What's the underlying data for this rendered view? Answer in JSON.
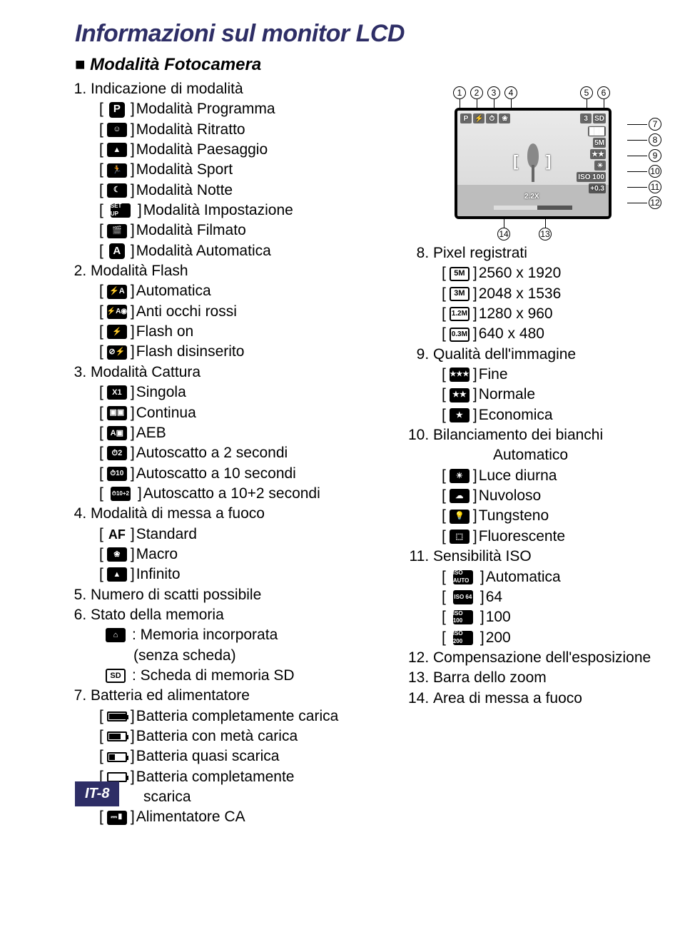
{
  "title": "Informazioni sul monitor LCD",
  "subheading": "Modalità Fotocamera",
  "footer": "IT-8",
  "colors": {
    "accent": "#2e2e66"
  },
  "diagram": {
    "callouts_top": [
      "1",
      "2",
      "3",
      "4",
      "5",
      "6"
    ],
    "callouts_right": [
      "7",
      "8",
      "9",
      "10",
      "11",
      "12"
    ],
    "callouts_bottom": [
      "14",
      "13"
    ],
    "overlay": {
      "p": "P",
      "shots": "3",
      "sd": "SD",
      "size": "5M",
      "iso": "ISO 100",
      "zoom": "2.2X",
      "exp": "+0.3"
    }
  },
  "left": [
    {
      "n": "1",
      "label": "Indicazione di modalità",
      "items": [
        {
          "icon": "P",
          "style": "lg",
          "text": "Modalità Programma"
        },
        {
          "icon": "☺",
          "text": "Modalità Ritratto"
        },
        {
          "icon": "▲",
          "text": "Modalità Paesaggio"
        },
        {
          "icon": "🏃",
          "text": "Modalità Sport"
        },
        {
          "icon": "☾",
          "text": "Modalità Notte"
        },
        {
          "icon": "SET UP",
          "text": "Modalità Impostazione"
        },
        {
          "icon": "🎬",
          "text": "Modalità Filmato"
        },
        {
          "icon": "A",
          "style": "lg",
          "text": "Modalità Automatica"
        }
      ]
    },
    {
      "n": "2",
      "label": "Modalità Flash",
      "items": [
        {
          "icon": "⚡A",
          "text": "Automatica"
        },
        {
          "icon": "⚡A◉",
          "text": "Anti occhi rossi"
        },
        {
          "icon": "⚡",
          "text": "Flash on"
        },
        {
          "icon": "⊘⚡",
          "text": "Flash disinserito"
        }
      ]
    },
    {
      "n": "3",
      "label": "Modalità Cattura",
      "items": [
        {
          "icon": "X1",
          "text": "Singola"
        },
        {
          "icon": "▣▣",
          "text": "Continua"
        },
        {
          "icon": "A▣",
          "text": "AEB"
        },
        {
          "icon": "⏱2",
          "text": "Autoscatto a 2 secondi"
        },
        {
          "icon": "⏱10",
          "text": "Autoscatto a 10 secondi"
        },
        {
          "icon": "⏱10+2",
          "text": "Autoscatto a 10+2 secondi"
        }
      ]
    },
    {
      "n": "4",
      "label": "Modalità di messa a fuoco",
      "items": [
        {
          "icon": "AF",
          "style": "af",
          "text": "Standard"
        },
        {
          "icon": "❀",
          "text": "Macro"
        },
        {
          "icon": "▲",
          "text": "Infinito"
        }
      ]
    },
    {
      "n": "5",
      "label": "Numero di scatti possibile"
    },
    {
      "n": "6",
      "label": "Stato della memoria",
      "mem": [
        {
          "icon": "⌂",
          "text": ": Memoria incorporata",
          "sub": "(senza scheda)"
        },
        {
          "icon": "SD",
          "style": "inv",
          "text": ": Scheda di memoria SD"
        }
      ]
    },
    {
      "n": "7",
      "label": "Batteria ed alimentatore",
      "items": [
        {
          "icon": "███",
          "style": "batt",
          "text": "Batteria completamente carica"
        },
        {
          "icon": "██░",
          "style": "batt",
          "text": "Batteria con metà carica"
        },
        {
          "icon": "█░░",
          "style": "batt",
          "text": "Batteria quasi scarica"
        },
        {
          "icon": "░░░",
          "style": "batt",
          "text": "Batteria completamente",
          "sub2": "scarica"
        },
        {
          "icon": "⎓▮",
          "text": "Alimentatore CA"
        }
      ]
    }
  ],
  "right": [
    {
      "n": "8",
      "label": "Pixel registrati",
      "items": [
        {
          "icon": "5M",
          "style": "inv",
          "text": "2560 x 1920"
        },
        {
          "icon": "3M",
          "style": "inv",
          "text": "2048 x 1536"
        },
        {
          "icon": "1.2M",
          "style": "inv",
          "text": "1280 x 960"
        },
        {
          "icon": "0.3M",
          "style": "inv",
          "text": "640 x 480"
        }
      ]
    },
    {
      "n": "9",
      "label": "Qualità dell'immagine",
      "items": [
        {
          "icon": "★★★",
          "text": "Fine"
        },
        {
          "icon": "★★",
          "text": "Normale"
        },
        {
          "icon": "★",
          "text": "Economica"
        }
      ]
    },
    {
      "n": "10",
      "label": "Bilanciamento dei bianchi",
      "autoline": "Automatico",
      "items": [
        {
          "icon": "☀",
          "text": "Luce diurna"
        },
        {
          "icon": "☁",
          "text": "Nuvoloso"
        },
        {
          "icon": "💡",
          "text": "Tungsteno"
        },
        {
          "icon": "⬚",
          "text": "Fluorescente"
        }
      ]
    },
    {
      "n": "11",
      "label": "Sensibilità ISO",
      "items": [
        {
          "icon": "ISO AUTO",
          "text": "Automatica"
        },
        {
          "icon": "ISO 64",
          "text": "64"
        },
        {
          "icon": "ISO 100",
          "text": "100"
        },
        {
          "icon": "ISO 200",
          "text": "200"
        }
      ]
    },
    {
      "n": "12",
      "label": "Compensazione dell'esposizione"
    },
    {
      "n": "13",
      "label": "Barra dello zoom"
    },
    {
      "n": "14",
      "label": "Area di messa a fuoco"
    }
  ]
}
